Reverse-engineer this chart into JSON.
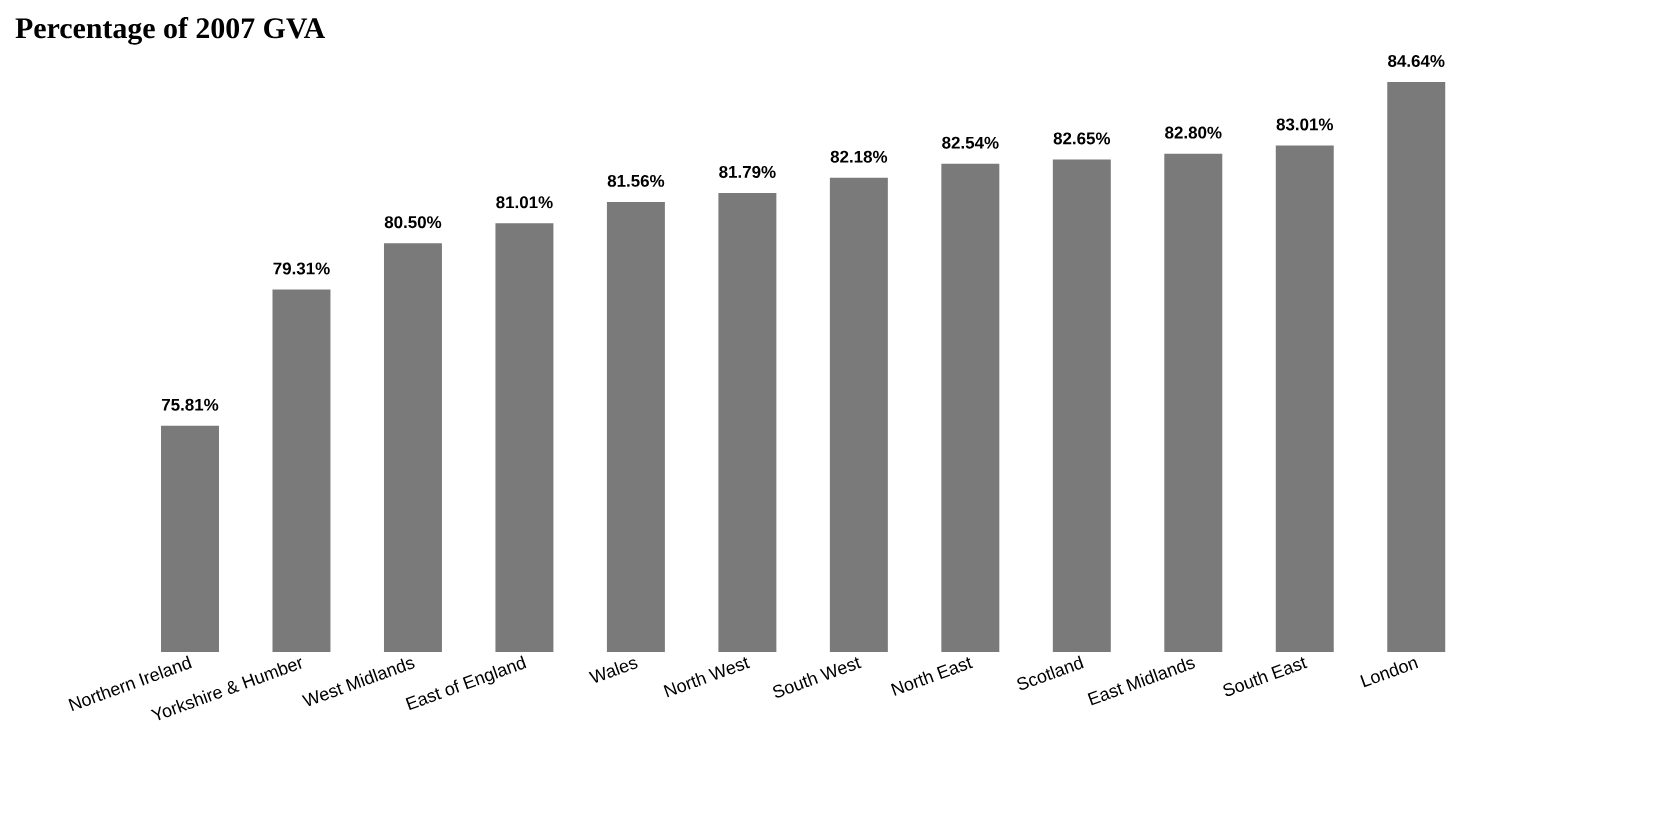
{
  "chart_data": {
    "type": "bar",
    "title": "Percentage of 2007 GVA",
    "categories": [
      "Northern Ireland",
      "Yorkshire & Humber",
      "West Midlands",
      "East of England",
      "Wales",
      "North West",
      "South West",
      "North East",
      "Scotland",
      "East Midlands",
      "South East",
      "London"
    ],
    "values": [
      75.81,
      79.31,
      80.5,
      81.01,
      81.56,
      81.79,
      82.18,
      82.54,
      82.65,
      82.8,
      83.01,
      84.64
    ],
    "value_labels": [
      "75.81%",
      "79.31%",
      "80.50%",
      "81.01%",
      "81.56%",
      "81.79%",
      "82.18%",
      "82.54%",
      "82.65%",
      "82.80%",
      "83.01%",
      "84.64%"
    ],
    "color": "#7a7a7a",
    "ylim": [
      70,
      84.64
    ],
    "tick_labels": "x"
  }
}
